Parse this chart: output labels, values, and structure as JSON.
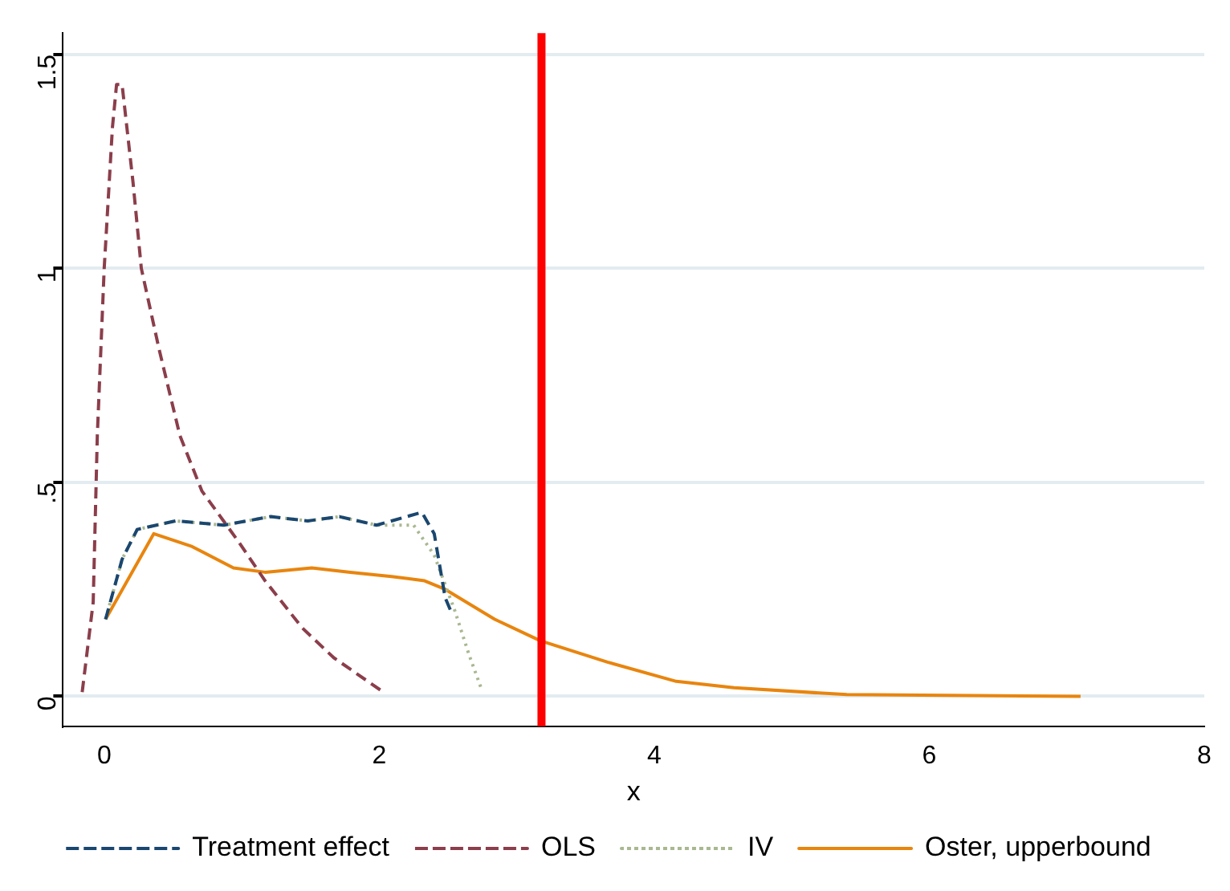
{
  "chart_data": {
    "type": "line",
    "xlabel": "x",
    "xlim": [
      -0.3,
      8
    ],
    "xticks": [
      0,
      2,
      4,
      6,
      8
    ],
    "ylim": [
      -0.07,
      1.55
    ],
    "yticks": [
      0,
      {
        "value": 0.5,
        "label": ".5"
      },
      1,
      1.5
    ],
    "grid": "y",
    "legend": "bottom",
    "marker": "none",
    "ref_lines": [
      {
        "axis": "x",
        "value": 3.18,
        "color": "#ff0000"
      }
    ],
    "series": [
      {
        "name": "Treatment effect",
        "color": "#1a476f",
        "line_style": "dashed",
        "x": [
          0.01,
          0.13,
          0.24,
          0.52,
          0.87,
          1.21,
          1.48,
          1.71,
          1.98,
          2.31,
          2.4,
          2.48,
          2.52
        ],
        "values": [
          0.18,
          0.32,
          0.39,
          0.41,
          0.4,
          0.42,
          0.41,
          0.42,
          0.4,
          0.43,
          0.38,
          0.23,
          0.2
        ]
      },
      {
        "name": "OLS",
        "color": "#8b3e4b",
        "line_style": "dashed",
        "x": [
          -0.16,
          -0.08,
          -0.05,
          0,
          0.06,
          0.09,
          0.13,
          0.21,
          0.27,
          0.4,
          0.55,
          0.71,
          0.98,
          1.17,
          1.44,
          1.67,
          2.03
        ],
        "values": [
          0.01,
          0.22,
          0.61,
          1.0,
          1.33,
          1.43,
          1.43,
          1.2,
          1.0,
          0.81,
          0.61,
          0.48,
          0.36,
          0.27,
          0.16,
          0.09,
          0.01
        ]
      },
      {
        "name": "IV",
        "color": "#a8b890",
        "line_style": "dotted",
        "x": [
          0.01,
          0.13,
          0.24,
          0.52,
          0.87,
          1.21,
          1.48,
          1.71,
          1.98,
          2.25,
          2.4,
          2.55,
          2.65,
          2.74
        ],
        "values": [
          0.18,
          0.32,
          0.39,
          0.41,
          0.4,
          0.42,
          0.41,
          0.42,
          0.4,
          0.4,
          0.33,
          0.2,
          0.1,
          0.02
        ]
      },
      {
        "name": "Oster, upperbound",
        "color": "#e8850e",
        "line_style": "solid",
        "x": [
          0.01,
          0.36,
          0.64,
          0.94,
          1.17,
          1.51,
          1.79,
          2.09,
          2.33,
          2.48,
          2.84,
          3.17,
          3.66,
          4.16,
          4.58,
          5.4,
          7.1
        ],
        "values": [
          0.18,
          0.38,
          0.35,
          0.3,
          0.29,
          0.3,
          0.29,
          0.28,
          0.27,
          0.25,
          0.18,
          0.13,
          0.08,
          0.035,
          0.02,
          0.004,
          0
        ]
      }
    ]
  }
}
